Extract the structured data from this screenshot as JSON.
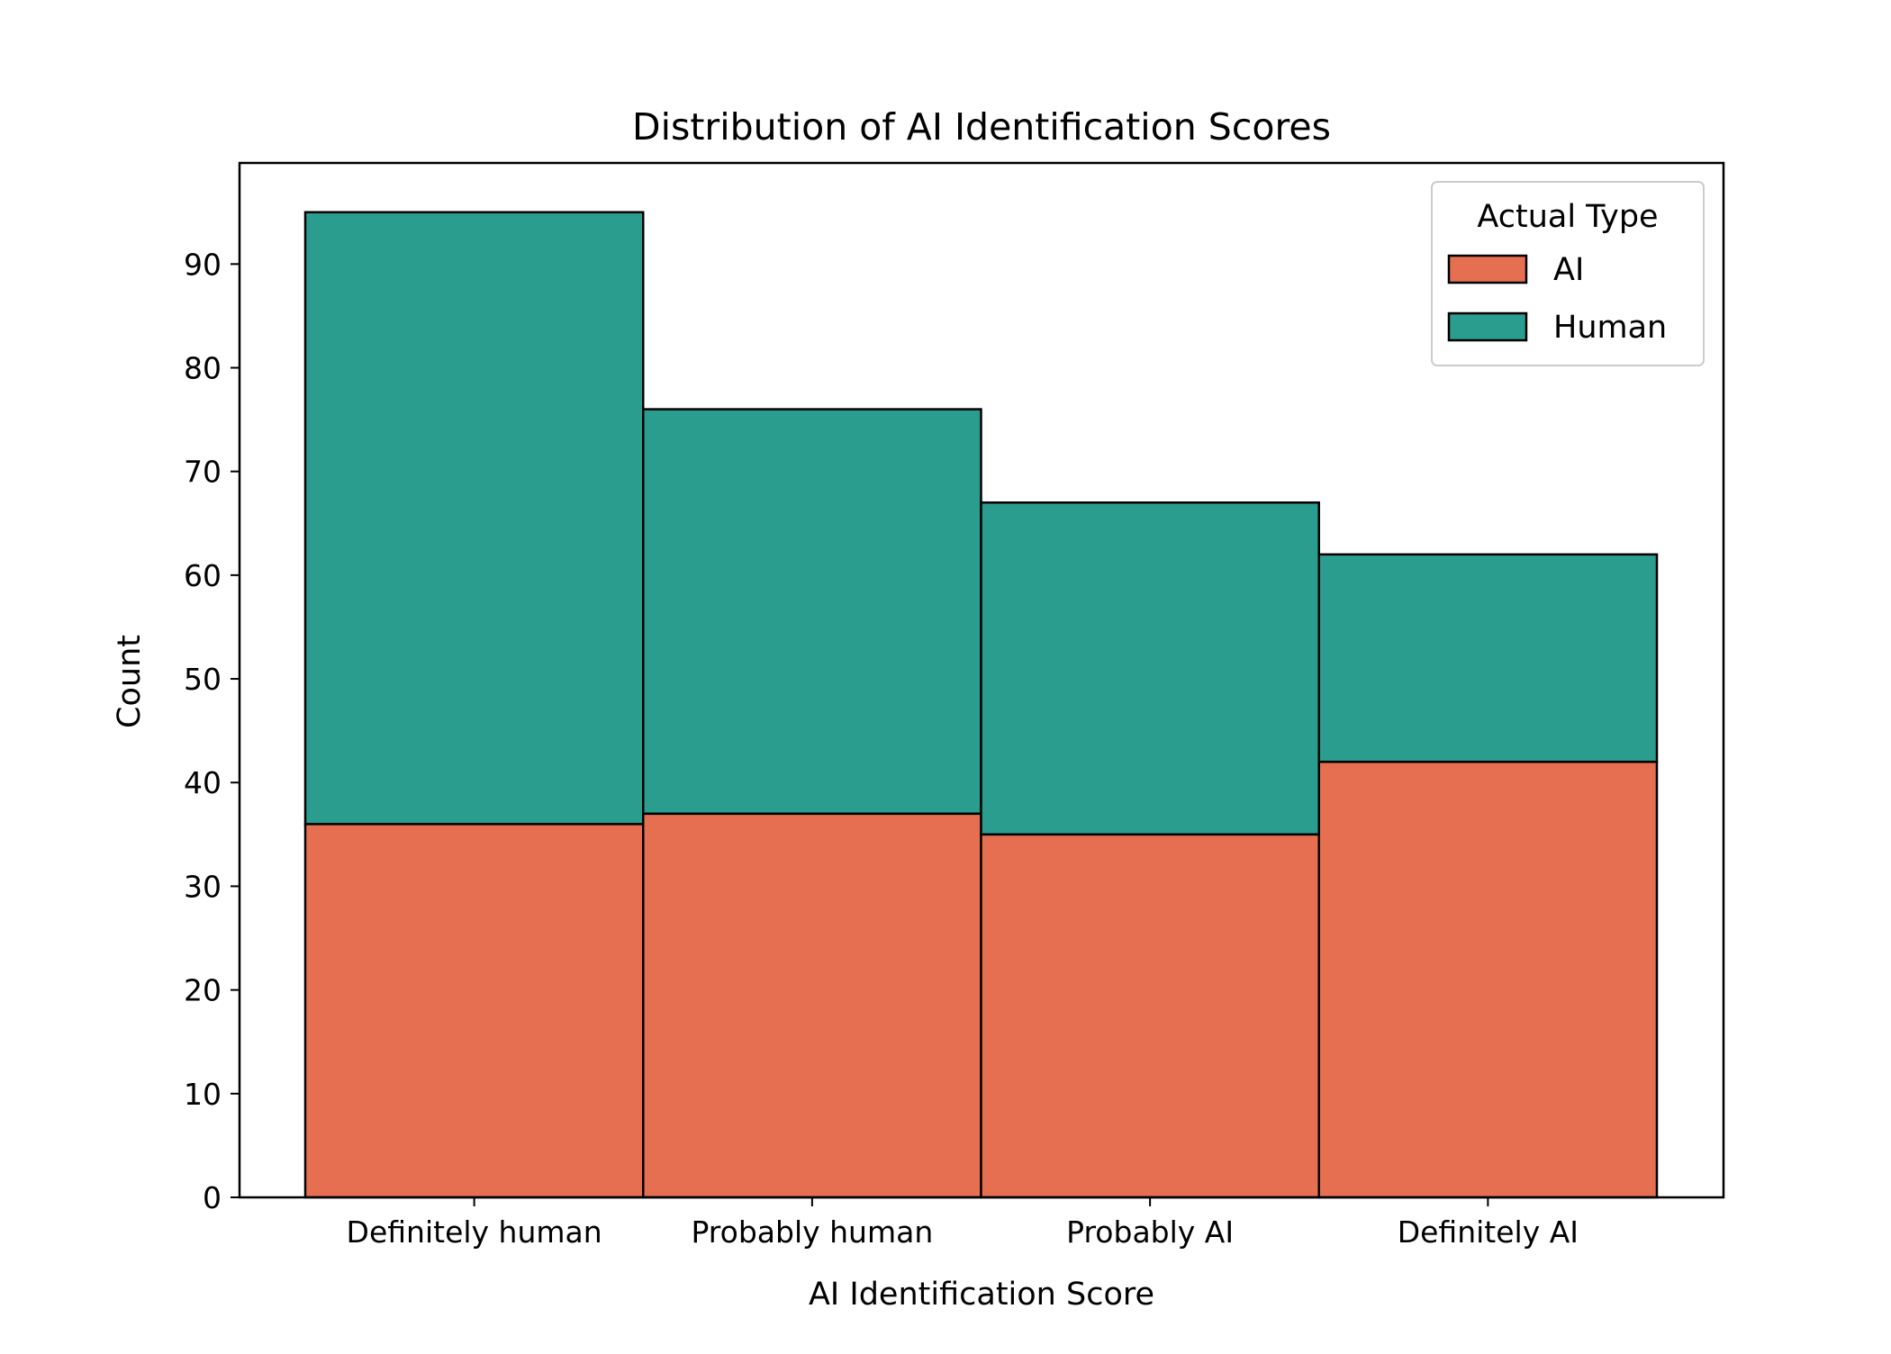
{
  "chart_data": {
    "type": "bar",
    "stacked": true,
    "title": "Distribution of AI Identification Scores",
    "xlabel": "AI Identification Score",
    "ylabel": "Count",
    "categories": [
      "Definitely human",
      "Probably human",
      "Probably AI",
      "Definitely AI"
    ],
    "series": [
      {
        "name": "AI",
        "color": "#e76f51",
        "values": [
          36,
          37,
          35,
          42
        ]
      },
      {
        "name": "Human",
        "color": "#2a9d8f",
        "values": [
          59,
          39,
          32,
          20
        ]
      }
    ],
    "ylim": [
      0,
      100
    ],
    "yticks": [
      0,
      10,
      20,
      30,
      40,
      50,
      60,
      70,
      80,
      90
    ],
    "grid": false,
    "legend": {
      "title": "Actual Type",
      "placement": "top-right"
    }
  }
}
